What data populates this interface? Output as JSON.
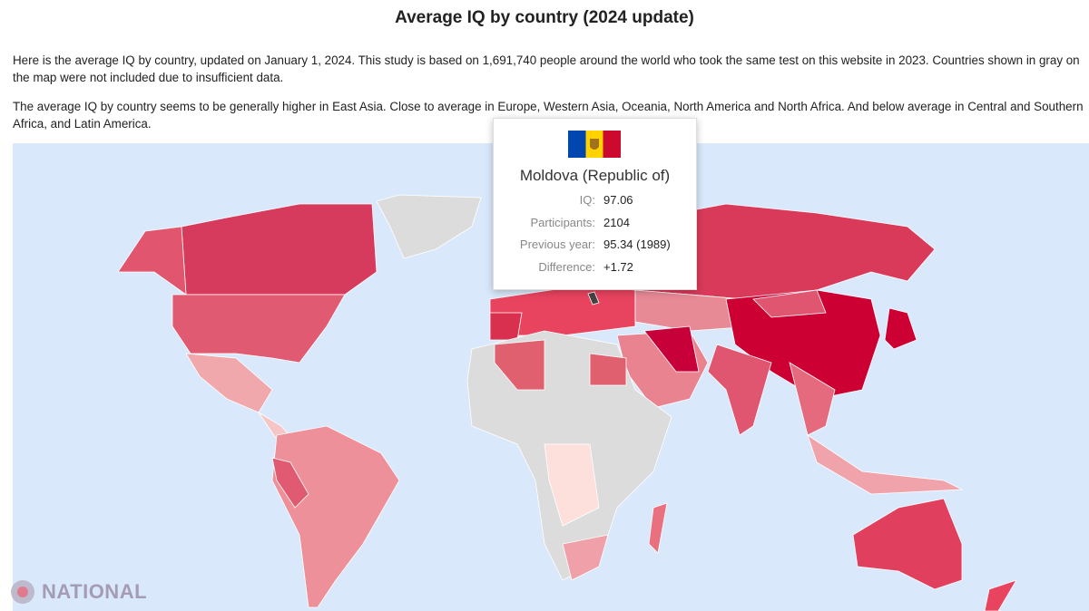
{
  "header": {
    "title": "Average IQ by country (2024 update)"
  },
  "paragraphs": [
    "Here is the average IQ by country, updated on January 1, 2024. This study is based on 1,691,740 people around the world who took the same test on this website in 2023. Countries shown in gray on the map were not included due to insufficient data.",
    "The average IQ by country seems to be generally higher in East Asia. Close to average in Europe, Western Asia, Oceania, North America and North Africa. And below average in Central and Southern Africa, and Latin America."
  ],
  "tooltip": {
    "country": "Moldova (Republic of)",
    "rows": [
      {
        "label": "IQ:",
        "value": "97.06"
      },
      {
        "label": "Participants:",
        "value": "2104"
      },
      {
        "label": "Previous year:",
        "value": "95.34 (1989)"
      },
      {
        "label": "Difference:",
        "value": "+1.72"
      }
    ]
  },
  "watermark": "NATIONAL"
}
